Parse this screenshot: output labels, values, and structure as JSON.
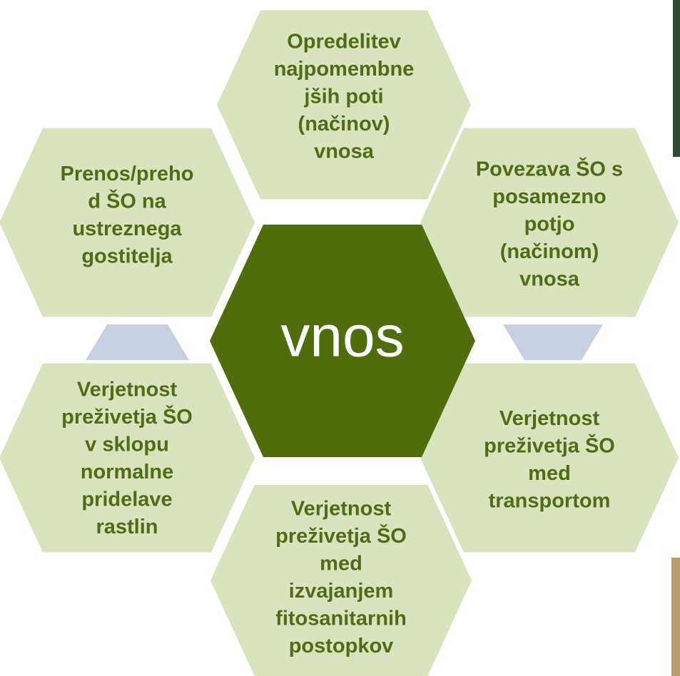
{
  "center": {
    "label": "vnos"
  },
  "nodes": [
    {
      "lines": [
        "Opredelitev",
        "najpomembne",
        "jših poti",
        "(načinov)",
        "vnosa"
      ]
    },
    {
      "lines": [
        "Povezava ŠO s",
        "posamezno",
        "potjo",
        "(načinom)",
        "vnosa"
      ]
    },
    {
      "lines": [
        "Verjetnost",
        "preživetja ŠO",
        "med",
        "transportom"
      ]
    },
    {
      "lines": [
        "Verjetnost",
        "preživetja ŠO",
        "med",
        "izvajanjem",
        "fitosanitarnih",
        "postopkov"
      ]
    },
    {
      "lines": [
        "Verjetnost",
        "preživetja ŠO",
        "v sklopu",
        "normalne",
        "pridelave",
        "rastlin"
      ]
    },
    {
      "lines": [
        "Prenos/preho",
        "d ŠO na",
        "ustreznega",
        "gostitelja"
      ]
    }
  ]
}
